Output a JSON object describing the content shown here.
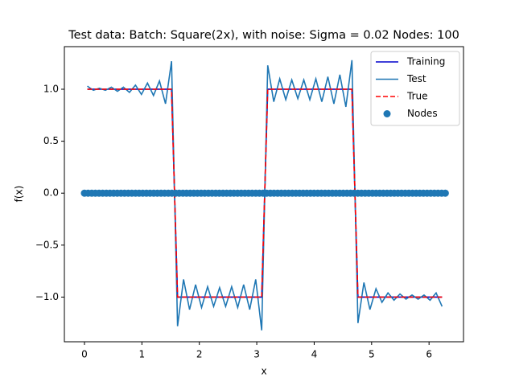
{
  "chart_data": {
    "type": "line",
    "title": "Test data: Batch: Square(2x), with noise: Sigma = 0.02 Nodes: 100",
    "xlabel": "x",
    "ylabel": "f(x)",
    "xlim": [
      -0.35,
      6.6
    ],
    "ylim": [
      -1.43,
      1.41
    ],
    "xticks": [
      0,
      1,
      2,
      3,
      4,
      5,
      6
    ],
    "yticks": [
      {
        "value": -1,
        "label": "−1.0"
      },
      {
        "value": -0.5,
        "label": "−0.5"
      },
      {
        "value": 0,
        "label": "0.0"
      },
      {
        "value": 0.5,
        "label": "0.5"
      },
      {
        "value": 1,
        "label": "1.0"
      }
    ],
    "legend": "upper right",
    "x": [
      0.05,
      0.155,
      0.259,
      0.364,
      0.469,
      0.574,
      0.678,
      0.783,
      0.888,
      0.992,
      1.097,
      1.202,
      1.306,
      1.411,
      1.516,
      1.621,
      1.725,
      1.83,
      1.935,
      2.039,
      2.144,
      2.249,
      2.353,
      2.458,
      2.563,
      2.668,
      2.772,
      2.877,
      2.982,
      3.086,
      3.191,
      3.296,
      3.4,
      3.505,
      3.61,
      3.715,
      3.819,
      3.924,
      4.029,
      4.133,
      4.238,
      4.343,
      4.447,
      4.552,
      4.657,
      4.762,
      4.866,
      4.971,
      5.076,
      5.18,
      5.285,
      5.39,
      5.494,
      5.599,
      5.704,
      5.809,
      5.913,
      6.018,
      6.123,
      6.227
    ],
    "series": [
      {
        "name": "Training",
        "color": "#0000cc",
        "style": "solid",
        "values": [
          1,
          1,
          1,
          1,
          1,
          1,
          1,
          1,
          1,
          1,
          1,
          1,
          1,
          1,
          1,
          -1,
          -1,
          -1,
          -1,
          -1,
          -1,
          -1,
          -1,
          -1,
          -1,
          -1,
          -1,
          -1,
          -1,
          -1,
          1,
          1,
          1,
          1,
          1,
          1,
          1,
          1,
          1,
          1,
          1,
          1,
          1,
          1,
          1,
          -1,
          -1,
          -1,
          -1,
          -1,
          -1,
          -1,
          -1,
          -1,
          -1,
          -1,
          -1,
          -1,
          -1,
          -1
        ]
      },
      {
        "name": "Test",
        "color": "#1f77b4",
        "style": "solid",
        "values": [
          1.03,
          0.99,
          1.01,
          0.99,
          1.02,
          0.98,
          1.02,
          0.97,
          1.04,
          0.95,
          1.06,
          0.94,
          1.08,
          0.86,
          1.27,
          -1.28,
          -0.83,
          -1.12,
          -0.88,
          -1.1,
          -0.9,
          -1.09,
          -0.91,
          -1.09,
          -0.9,
          -1.1,
          -0.88,
          -1.12,
          -0.83,
          -1.32,
          1.23,
          0.88,
          1.1,
          0.9,
          1.09,
          0.91,
          1.09,
          0.9,
          1.1,
          0.88,
          1.12,
          0.86,
          1.14,
          0.83,
          1.28,
          -1.25,
          -0.86,
          -1.12,
          -0.92,
          -1.05,
          -0.96,
          -1.03,
          -0.97,
          -1.02,
          -0.98,
          -1.02,
          -0.98,
          -1.03,
          -0.96,
          -1.09
        ]
      },
      {
        "name": "True",
        "color": "#ff0000",
        "style": "dashed",
        "values": [
          1,
          1,
          1,
          1,
          1,
          1,
          1,
          1,
          1,
          1,
          1,
          1,
          1,
          1,
          1,
          -1,
          -1,
          -1,
          -1,
          -1,
          -1,
          -1,
          -1,
          -1,
          -1,
          -1,
          -1,
          -1,
          -1,
          -1,
          1,
          1,
          1,
          1,
          1,
          1,
          1,
          1,
          1,
          1,
          1,
          1,
          1,
          1,
          1,
          -1,
          -1,
          -1,
          -1,
          -1,
          -1,
          -1,
          -1,
          -1,
          -1,
          -1,
          -1,
          -1,
          -1,
          -1
        ]
      },
      {
        "name": "Nodes",
        "color": "#1f77b4",
        "style": "markers",
        "x": [
          0,
          0.063,
          0.127,
          0.19,
          0.254,
          0.317,
          0.381,
          0.444,
          0.508,
          0.571,
          0.635,
          0.698,
          0.762,
          0.825,
          0.889,
          0.952,
          1.015,
          1.079,
          1.142,
          1.206,
          1.269,
          1.333,
          1.396,
          1.46,
          1.523,
          1.587,
          1.65,
          1.714,
          1.777,
          1.841,
          1.904,
          1.967,
          2.031,
          2.094,
          2.158,
          2.221,
          2.285,
          2.348,
          2.412,
          2.475,
          2.539,
          2.602,
          2.666,
          2.729,
          2.793,
          2.856,
          2.919,
          2.983,
          3.046,
          3.11,
          3.173,
          3.237,
          3.3,
          3.364,
          3.427,
          3.491,
          3.554,
          3.618,
          3.681,
          3.744,
          3.808,
          3.871,
          3.935,
          3.998,
          4.062,
          4.125,
          4.189,
          4.252,
          4.316,
          4.379,
          4.443,
          4.506,
          4.57,
          4.633,
          4.696,
          4.76,
          4.823,
          4.887,
          4.95,
          5.014,
          5.077,
          5.141,
          5.204,
          5.268,
          5.331,
          5.395,
          5.458,
          5.521,
          5.585,
          5.648,
          5.712,
          5.775,
          5.839,
          5.902,
          5.966,
          6.029,
          6.093,
          6.156,
          6.22,
          6.283
        ],
        "values": [
          0,
          0,
          0,
          0,
          0,
          0,
          0,
          0,
          0,
          0,
          0,
          0,
          0,
          0,
          0,
          0,
          0,
          0,
          0,
          0,
          0,
          0,
          0,
          0,
          0,
          0,
          0,
          0,
          0,
          0,
          0,
          0,
          0,
          0,
          0,
          0,
          0,
          0,
          0,
          0,
          0,
          0,
          0,
          0,
          0,
          0,
          0,
          0,
          0,
          0,
          0,
          0,
          0,
          0,
          0,
          0,
          0,
          0,
          0,
          0,
          0,
          0,
          0,
          0,
          0,
          0,
          0,
          0,
          0,
          0,
          0,
          0,
          0,
          0,
          0,
          0,
          0,
          0,
          0,
          0,
          0,
          0,
          0,
          0,
          0,
          0,
          0,
          0,
          0,
          0,
          0,
          0,
          0,
          0,
          0,
          0,
          0,
          0,
          0,
          0
        ]
      }
    ]
  }
}
